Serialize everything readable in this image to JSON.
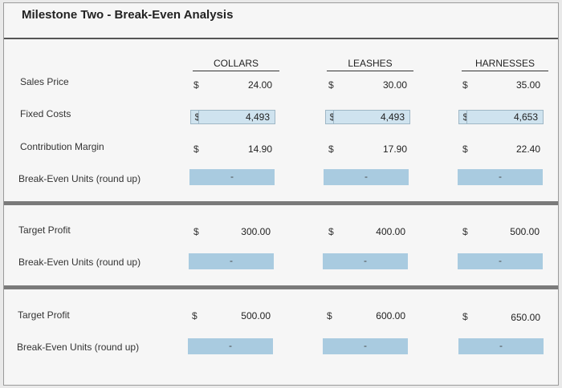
{
  "title": "Milestone Two - Break-Even Analysis",
  "columns": [
    "COLLARS",
    "LEASHES",
    "HARNESSES"
  ],
  "currency": "$",
  "rows": {
    "sales_price": {
      "label": "Sales Price",
      "values": [
        "24.00",
        "30.00",
        "35.00"
      ]
    },
    "fixed_costs": {
      "label": "Fixed Costs",
      "values": [
        "4,493",
        "4,493",
        "4,653"
      ]
    },
    "contribution_margin": {
      "label": "Contribution Margin",
      "values": [
        "14.90",
        "17.90",
        "22.40"
      ]
    },
    "break_even_1": {
      "label": "Break-Even Units (round up)",
      "values": [
        "-",
        "-",
        "-"
      ]
    }
  },
  "section2": {
    "target_profit": {
      "label": "Target Profit",
      "values": [
        "300.00",
        "400.00",
        "500.00"
      ]
    },
    "break_even": {
      "label": "Break-Even Units (round up)",
      "values": [
        "-",
        "-",
        "-"
      ]
    }
  },
  "section3": {
    "target_profit": {
      "label": "Target Profit",
      "values": [
        "500.00",
        "600.00",
        "650.00"
      ]
    },
    "break_even": {
      "label": "Break-Even Units (round up)",
      "values": [
        "-",
        "-",
        "-"
      ]
    }
  },
  "colors": {
    "input_fill": "#cfe3ef",
    "output_fill": "#a9cbe0",
    "separator": "#7a7a7a"
  }
}
